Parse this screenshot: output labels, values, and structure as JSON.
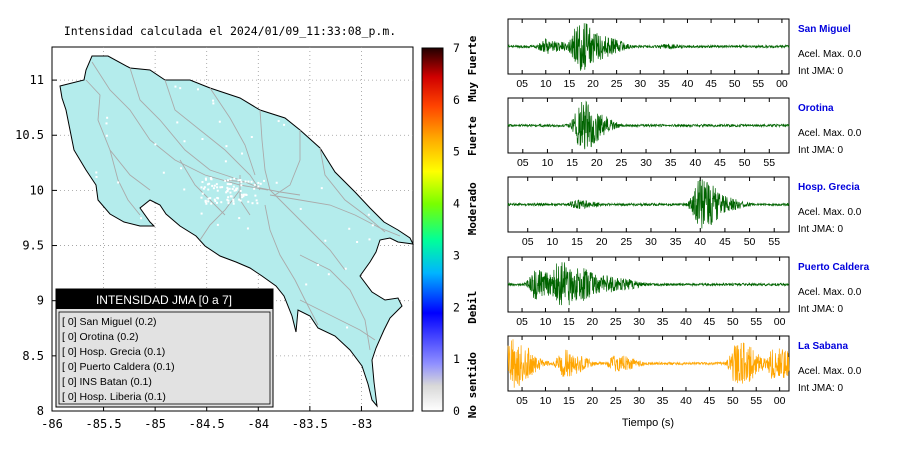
{
  "map": {
    "title": "Intensidad calculada el 2024/01/09_11:33:08_p.m.",
    "xticks": [
      "-86",
      "-85.5",
      "-85",
      "-84.5",
      "-84",
      "-83.5",
      "-83"
    ],
    "xtick_values": [
      -86,
      -85.5,
      -85,
      -84.5,
      -84,
      -83.5,
      -83
    ],
    "yticks": [
      "11",
      "10.5",
      "10",
      "9.5",
      "9",
      "8.5",
      "8"
    ],
    "ytick_values": [
      11,
      10.5,
      10,
      9.5,
      9,
      8.5,
      8
    ],
    "xlim": [
      -86,
      -82.5
    ],
    "ylim": [
      8,
      11.3
    ],
    "land_color": "#b4ecec",
    "road_color": "#aaaaaa"
  },
  "colorbar": {
    "ticks": [
      "0",
      "1",
      "2",
      "3",
      "4",
      "5",
      "6",
      "7"
    ],
    "labels": [
      {
        "text": "No sentido",
        "center": 0.5
      },
      {
        "text": "Debil",
        "center": 2
      },
      {
        "text": "Moderado",
        "center": 3.9
      },
      {
        "text": "Fuerte",
        "center": 5.3
      },
      {
        "text": "Muy Fuerte",
        "center": 6.6
      }
    ],
    "range": [
      0,
      7
    ]
  },
  "legend": {
    "title": "INTENSIDAD JMA [0 a 7]",
    "items": [
      {
        "text": "[ 0]  San Miguel (0.2)"
      },
      {
        "text": "[ 0]  Orotina (0.2)"
      },
      {
        "text": "[ 0]  Hosp. Grecia (0.1)"
      },
      {
        "text": "[ 0]  Puerto Caldera (0.1)"
      },
      {
        "text": "[ 0]  INS Batan (0.1)"
      },
      {
        "text": "[ 0]  Hosp. Liberia (0.1)"
      }
    ]
  },
  "xlabel": "Tiempo (s)",
  "chart_data": [
    {
      "type": "line",
      "title": "San Miguel",
      "lines": [
        "Acel. Max. 0.0",
        "Int JMA: 0"
      ],
      "color": "#006400",
      "xticks": [
        "05",
        "10",
        "15",
        "20",
        "25",
        "30",
        "35",
        "40",
        "45",
        "50",
        "55",
        "00"
      ],
      "xtick_values": [
        5,
        10,
        15,
        20,
        25,
        30,
        35,
        40,
        45,
        50,
        55,
        60
      ],
      "xlim": [
        2,
        61.5
      ],
      "envelope": [
        {
          "t": 10,
          "a": 0.3
        },
        {
          "t": 17,
          "a": 1
        },
        {
          "t": 21,
          "a": 0.55
        },
        {
          "t": 35,
          "a": 0.12
        }
      ]
    },
    {
      "type": "line",
      "title": "Orotina",
      "lines": [
        "Acel. Max. 0.0",
        "Int JMA: 0"
      ],
      "color": "#006400",
      "xticks": [
        "05",
        "10",
        "15",
        "20",
        "25",
        "30",
        "35",
        "40",
        "45",
        "50",
        "55"
      ],
      "xtick_values": [
        5,
        10,
        15,
        20,
        25,
        30,
        35,
        40,
        45,
        50,
        55
      ],
      "xlim": [
        2,
        59
      ],
      "envelope": [
        {
          "t": 17,
          "a": 1
        },
        {
          "t": 19,
          "a": 0.2
        }
      ]
    },
    {
      "type": "line",
      "title": "Hosp. Grecia",
      "lines": [
        "Acel. Max. 0.0",
        "Int JMA: 0"
      ],
      "color": "#006400",
      "xticks": [
        "05",
        "10",
        "15",
        "20",
        "25",
        "30",
        "35",
        "40",
        "45",
        "50",
        "55"
      ],
      "xtick_values": [
        5,
        10,
        15,
        20,
        25,
        30,
        35,
        40,
        45,
        50,
        55
      ],
      "xlim": [
        1,
        58
      ],
      "envelope": [
        {
          "t": 15,
          "a": 0.18
        },
        {
          "t": 40,
          "a": 1
        },
        {
          "t": 44,
          "a": 0.35
        }
      ]
    },
    {
      "type": "line",
      "title": "Puerto Caldera",
      "lines": [
        "Acel. Max. 0.0",
        "Int JMA: 0"
      ],
      "color": "#006400",
      "xticks": [
        "05",
        "10",
        "15",
        "20",
        "25",
        "30",
        "35",
        "40",
        "45",
        "50",
        "55",
        "00"
      ],
      "xtick_values": [
        5,
        10,
        15,
        20,
        25,
        30,
        35,
        40,
        45,
        50,
        55,
        60
      ],
      "xlim": [
        2,
        62
      ],
      "envelope": [
        {
          "t": 8,
          "a": 0.6
        },
        {
          "t": 13,
          "a": 1
        },
        {
          "t": 17,
          "a": 0.7
        },
        {
          "t": 22,
          "a": 0.4
        },
        {
          "t": 26,
          "a": 0.25
        }
      ]
    },
    {
      "type": "line",
      "title": "La Sabana",
      "lines": [
        "Acel. Max. 0.0",
        "Int JMA: 0"
      ],
      "color": "#ffa500",
      "xticks": [
        "05",
        "10",
        "15",
        "20",
        "25",
        "30",
        "35",
        "40",
        "45",
        "50",
        "55",
        "00"
      ],
      "xtick_values": [
        5,
        10,
        15,
        20,
        25,
        30,
        35,
        40,
        45,
        50,
        55,
        60
      ],
      "xlim": [
        2,
        62
      ],
      "envelope": [
        {
          "t": 3,
          "a": 1
        },
        {
          "t": 14,
          "a": 0.55
        },
        {
          "t": 25,
          "a": 0.35
        },
        {
          "t": 51,
          "a": 0.95
        },
        {
          "t": 59,
          "a": 0.75
        }
      ]
    }
  ]
}
